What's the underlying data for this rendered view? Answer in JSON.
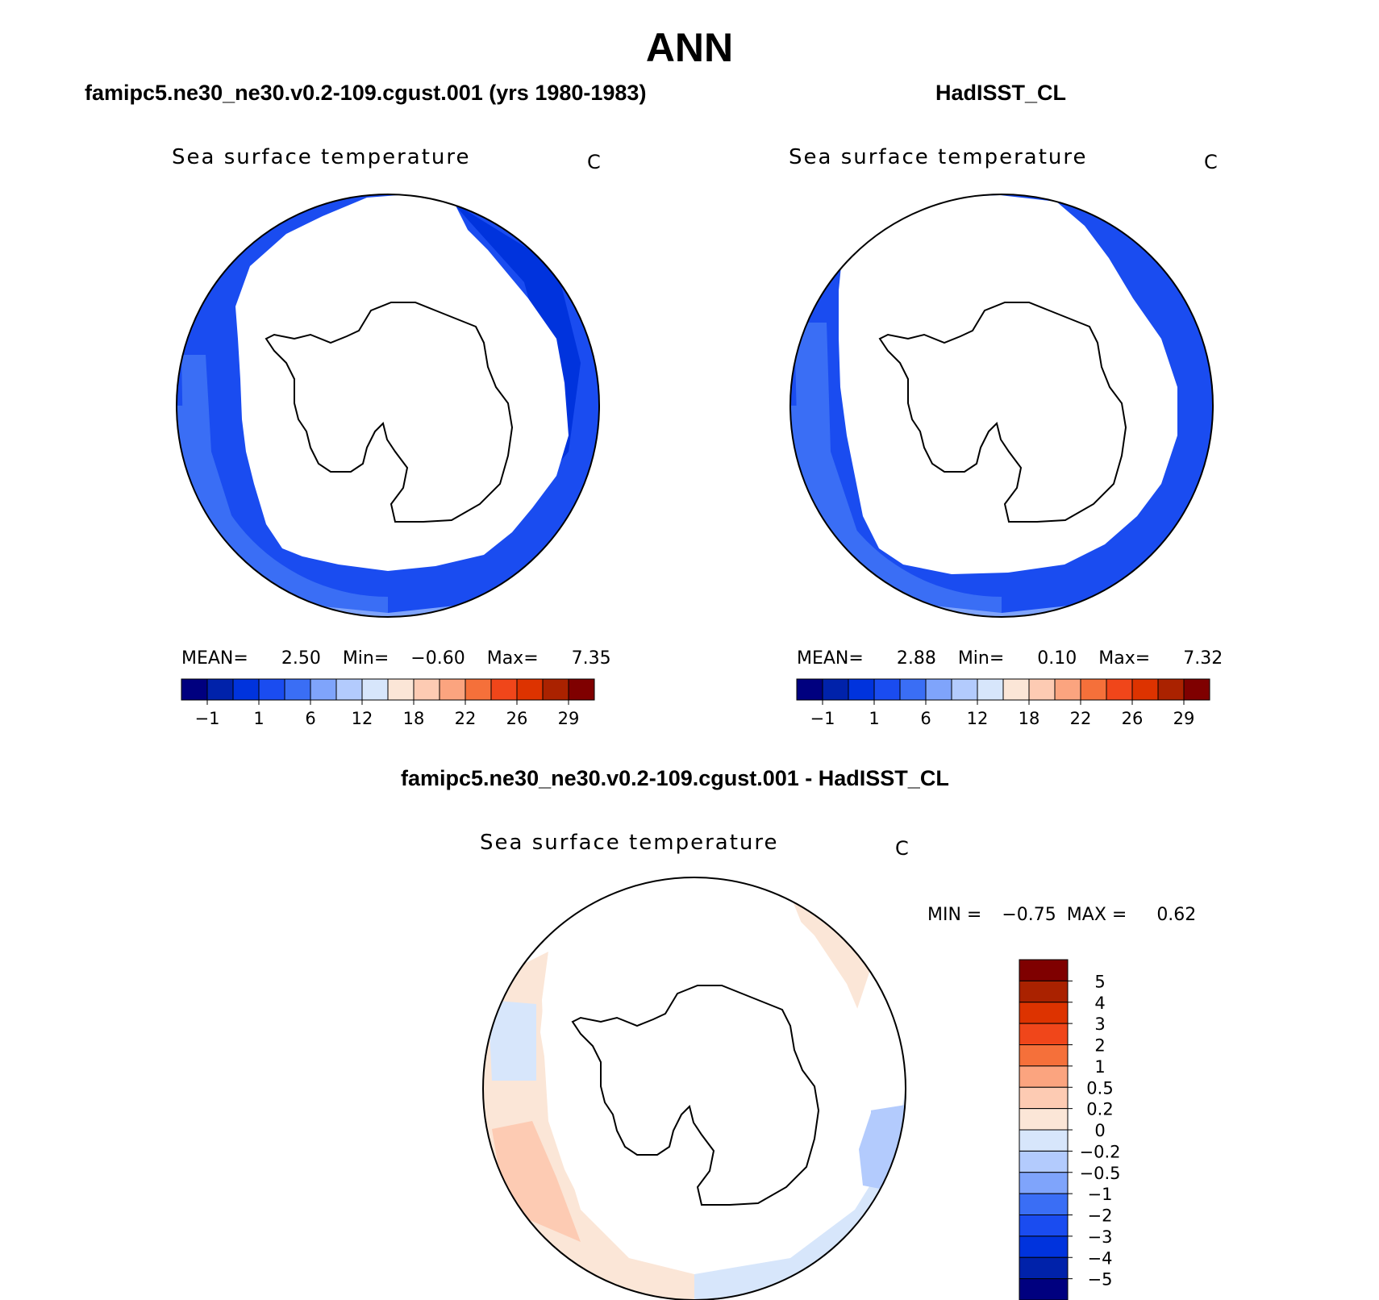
{
  "main_title": "ANN",
  "panels": {
    "model": {
      "title": "famipc5.ne30_ne30.v0.2-109.cgust.001 (yrs 1980-1983)",
      "label": "Sea surface temperature",
      "unit": "C",
      "stats": {
        "mean_label": "MEAN=",
        "mean": "2.50",
        "min_label": "Min=",
        "min": "−0.60",
        "max_label": "Max=",
        "max": "7.35"
      }
    },
    "obs": {
      "title": "HadISST_CL",
      "label": "Sea surface temperature",
      "unit": "C",
      "stats": {
        "mean_label": "MEAN=",
        "mean": "2.88",
        "min_label": "Min=",
        "min": "0.10",
        "max_label": "Max=",
        "max": "7.32"
      }
    },
    "diff": {
      "title": "famipc5.ne30_ne30.v0.2-109.cgust.001 - HadISST_CL",
      "label": "Sea surface temperature",
      "unit": "C",
      "stats": {
        "min_label": "MIN =",
        "min": "−0.75",
        "max_label": "MAX =",
        "max": "0.62"
      }
    }
  },
  "colorbars": {
    "abs": {
      "colors": [
        "#00007f",
        "#0022aa",
        "#0033dd",
        "#1a4cf0",
        "#3a6ef5",
        "#7fa4fb",
        "#b3cbfd",
        "#d7e6fb",
        "#fbe6d7",
        "#fdcbb3",
        "#fba47f",
        "#f5703a",
        "#f0461a",
        "#dd3300",
        "#aa2200",
        "#7f0000"
      ],
      "tick_labels": [
        "−1",
        "1",
        "6",
        "12",
        "18",
        "22",
        "26",
        "29"
      ]
    },
    "diff": {
      "colors": [
        "#00007f",
        "#0022aa",
        "#0033dd",
        "#1a4cf0",
        "#3a6ef5",
        "#7fa4fb",
        "#b3cbfd",
        "#d7e6fb",
        "#fbe6d7",
        "#fdcbb3",
        "#fba47f",
        "#f5703a",
        "#f0461a",
        "#dd3300",
        "#aa2200",
        "#7f0000"
      ],
      "tick_labels": [
        "−5",
        "−4",
        "−3",
        "−2",
        "−1",
        "−0.5",
        "−0.2",
        "0",
        "0.2",
        "0.5",
        "1",
        "2",
        "3",
        "4",
        "5"
      ]
    }
  },
  "map_colors": {
    "land": "#ffffff",
    "coast": "#000000",
    "sst_deep": "#0033dd",
    "sst_mid": "#1a4cf0",
    "sst_light": "#3a6ef5",
    "sst_pale": "#7fa4fb",
    "diff_neg": "#d7e6fb",
    "diff_neg2": "#b3cbfd",
    "diff_pos": "#fbe6d7",
    "diff_pos2": "#fdcbb3"
  }
}
